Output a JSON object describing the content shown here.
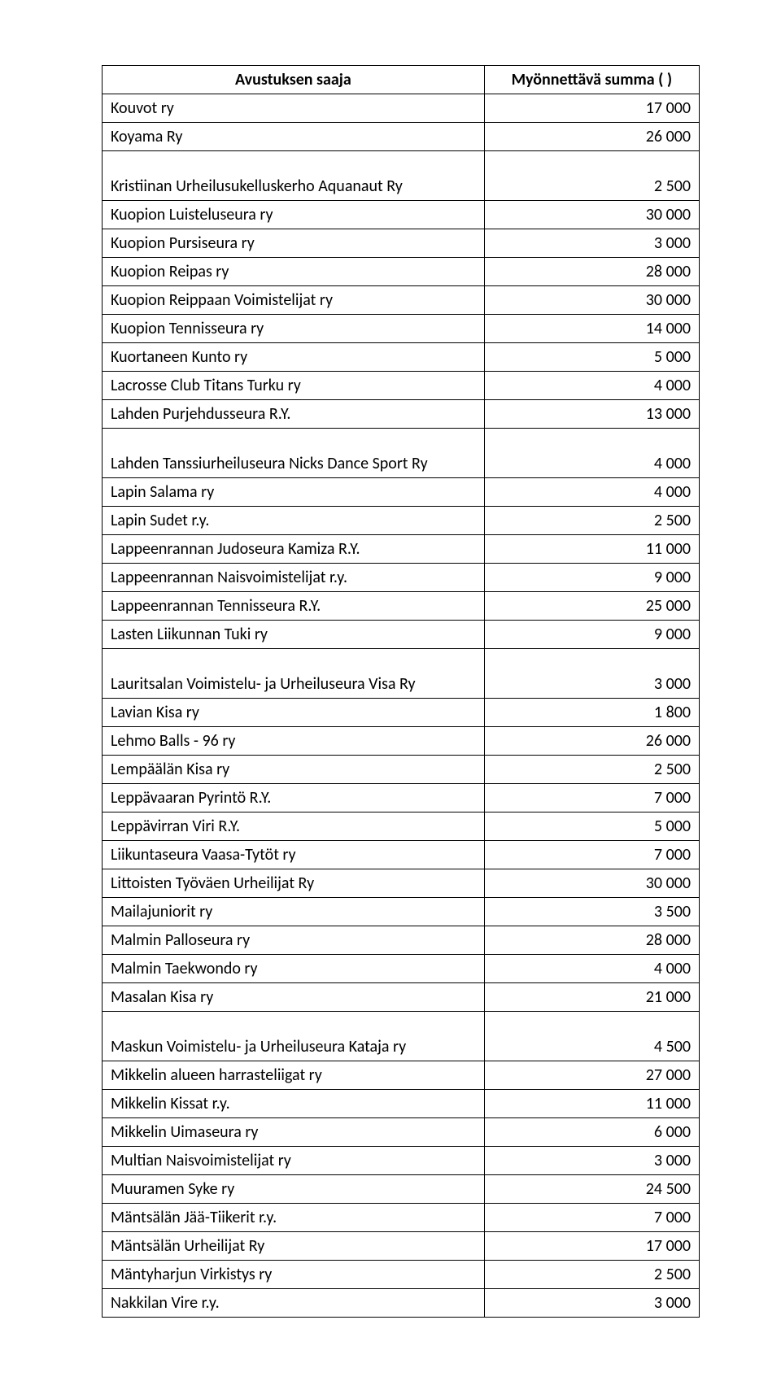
{
  "header": {
    "col1": "Avustuksen saaja",
    "col2": "Myönnettävä summa ( )"
  },
  "rows": [
    {
      "name": "Kouvot ry",
      "value": "17 000"
    },
    {
      "name": "Koyama Ry",
      "value": "26 000"
    },
    {
      "name": "Kristiinan Urheilusukelluskerho Aquanaut Ry",
      "value": "2 500",
      "tall": true
    },
    {
      "name": "Kuopion Luisteluseura ry",
      "value": "30 000"
    },
    {
      "name": "Kuopion Pursiseura ry",
      "value": "3 000"
    },
    {
      "name": "Kuopion Reipas ry",
      "value": "28 000"
    },
    {
      "name": "Kuopion Reippaan Voimistelijat ry",
      "value": "30 000"
    },
    {
      "name": "Kuopion Tennisseura ry",
      "value": "14 000"
    },
    {
      "name": "Kuortaneen Kunto ry",
      "value": "5 000"
    },
    {
      "name": "Lacrosse Club Titans Turku ry",
      "value": "4 000"
    },
    {
      "name": "Lahden Purjehdusseura R.Y.",
      "value": "13 000"
    },
    {
      "name": "Lahden Tanssiurheiluseura Nicks Dance Sport Ry",
      "value": "4 000",
      "tall": true
    },
    {
      "name": "Lapin Salama ry",
      "value": "4 000"
    },
    {
      "name": "Lapin Sudet r.y.",
      "value": "2 500"
    },
    {
      "name": "Lappeenrannan Judoseura Kamiza R.Y.",
      "value": "11 000"
    },
    {
      "name": "Lappeenrannan Naisvoimistelijat r.y.",
      "value": "9 000"
    },
    {
      "name": "Lappeenrannan Tennisseura R.Y.",
      "value": "25 000"
    },
    {
      "name": "Lasten Liikunnan Tuki ry",
      "value": "9 000"
    },
    {
      "name": "Lauritsalan Voimistelu- ja Urheiluseura Visa Ry",
      "value": "3 000",
      "tall": true
    },
    {
      "name": "Lavian Kisa ry",
      "value": "1 800"
    },
    {
      "name": "Lehmo Balls - 96 ry",
      "value": "26 000"
    },
    {
      "name": "Lempäälän Kisa ry",
      "value": "2 500"
    },
    {
      "name": "Leppävaaran Pyrintö R.Y.",
      "value": "7 000"
    },
    {
      "name": "Leppävirran Viri R.Y.",
      "value": "5 000"
    },
    {
      "name": "Liikuntaseura Vaasa-Tytöt ry",
      "value": "7 000"
    },
    {
      "name": "Littoisten Työväen Urheilijat Ry",
      "value": "30 000"
    },
    {
      "name": "Mailajuniorit ry",
      "value": "3 500"
    },
    {
      "name": "Malmin Palloseura ry",
      "value": "28 000"
    },
    {
      "name": "Malmin Taekwondo ry",
      "value": "4 000"
    },
    {
      "name": "Masalan Kisa ry",
      "value": "21 000"
    },
    {
      "name": "Maskun Voimistelu- ja Urheiluseura Kataja ry",
      "value": "4 500",
      "tall": true
    },
    {
      "name": "Mikkelin alueen harrasteliigat ry",
      "value": "27 000"
    },
    {
      "name": "Mikkelin Kissat r.y.",
      "value": "11 000"
    },
    {
      "name": "Mikkelin Uimaseura ry",
      "value": "6 000"
    },
    {
      "name": "Multian Naisvoimistelijat ry",
      "value": "3 000"
    },
    {
      "name": "Muuramen Syke ry",
      "value": "24 500"
    },
    {
      "name": "Mäntsälän Jää-Tiikerit r.y.",
      "value": "7 000"
    },
    {
      "name": "Mäntsälän Urheilijat Ry",
      "value": "17 000"
    },
    {
      "name": "Mäntyharjun Virkistys ry",
      "value": "2 500"
    },
    {
      "name": "Nakkilan Vire r.y.",
      "value": "3 000"
    }
  ]
}
